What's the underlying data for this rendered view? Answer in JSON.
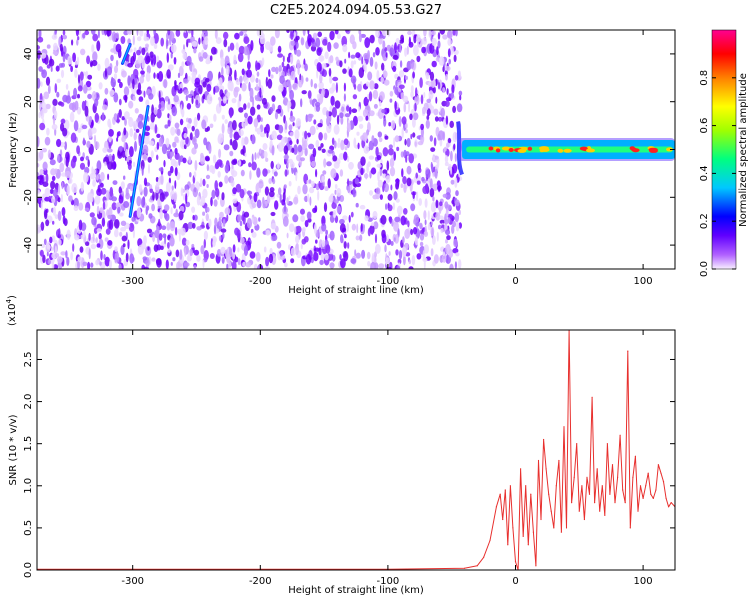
{
  "title": "C2E5.2024.094.05.53.G27",
  "chart_data": [
    {
      "type": "heatmap",
      "xlabel": "Height of straight line (km)",
      "ylabel": "Frequency (Hz)",
      "xlim": [
        -375,
        125
      ],
      "ylim": [
        -50,
        50
      ],
      "xticks": [
        -300,
        -200,
        -100,
        0,
        100
      ],
      "yticks": [
        -40,
        -20,
        0,
        20,
        40
      ],
      "colorbar": {
        "label": "Normalized spectral amplitude",
        "range": [
          0.0,
          1.0
        ],
        "ticks": [
          0.0,
          0.2,
          0.4,
          0.6,
          0.8
        ],
        "colormap": [
          "#f8f0ff",
          "#8000ff",
          "#0000ff",
          "#00c8ff",
          "#00ff80",
          "#a0ff00",
          "#ffff00",
          "#ff8000",
          "#ff0000",
          "#ff00a0"
        ]
      },
      "noise_region_x": [
        -375,
        -43
      ],
      "signal_band": {
        "x": [
          -45,
          125
        ],
        "y": [
          -4,
          4
        ],
        "center_y": 0,
        "peak_amplitude": 0.85
      },
      "streaks": [
        {
          "x": [
            -308,
            -302
          ],
          "y": [
            36,
            44
          ],
          "amplitude": 0.3
        },
        {
          "x": [
            -302,
            -288
          ],
          "y": [
            -28,
            18
          ],
          "amplitude": 0.3
        }
      ]
    },
    {
      "type": "line",
      "xlabel": "Height of straight line (km)",
      "ylabel": "SNR (10 * v/v)",
      "y_multiplier": "(x10",
      "y_multiplier_exp": "4",
      "y_multiplier_close": ")",
      "xlim": [
        -375,
        125
      ],
      "ylim": [
        0,
        2.85
      ],
      "xticks": [
        -300,
        -200,
        -100,
        0,
        100
      ],
      "yticks": [
        0.0,
        0.5,
        1.0,
        1.5,
        2.0,
        2.5
      ],
      "ytick_labels": [
        "0.0",
        "0.5",
        "1.0",
        "1.5",
        "2.0",
        "2.5"
      ],
      "color": "#e8302e",
      "series": [
        {
          "x": [
            -375,
            -300,
            -200,
            -100,
            -40,
            -30,
            -25,
            -20,
            -15,
            -12,
            -10,
            -8,
            -6,
            -4,
            -2,
            0,
            2,
            4,
            6,
            8,
            10,
            12,
            14,
            16,
            18,
            20,
            22,
            24,
            26,
            28,
            30,
            32,
            34,
            36,
            38,
            40,
            42,
            44,
            46,
            48,
            50,
            52,
            54,
            56,
            58,
            60,
            62,
            64,
            66,
            68,
            70,
            72,
            74,
            76,
            78,
            80,
            82,
            84,
            86,
            88,
            90,
            92,
            94,
            96,
            98,
            100,
            102,
            104,
            106,
            108,
            110,
            112,
            114,
            116,
            118,
            120,
            122,
            125
          ],
          "y": [
            0.01,
            0.01,
            0.01,
            0.01,
            0.02,
            0.05,
            0.15,
            0.35,
            0.75,
            0.9,
            0.6,
            0.95,
            0.3,
            1.0,
            0.5,
            0.1,
            0.0,
            1.2,
            0.4,
            1.0,
            0.3,
            0.9,
            0.45,
            0.05,
            1.3,
            0.6,
            1.55,
            1.2,
            0.9,
            0.7,
            0.5,
            1.0,
            1.3,
            0.45,
            1.7,
            0.5,
            2.85,
            0.8,
            1.1,
            1.5,
            0.7,
            1.0,
            0.6,
            1.1,
            0.9,
            2.05,
            0.8,
            1.2,
            0.7,
            1.0,
            0.65,
            1.5,
            0.9,
            1.25,
            0.8,
            1.1,
            1.6,
            0.95,
            0.8,
            2.6,
            0.5,
            1.1,
            1.35,
            0.7,
            1.0,
            0.85,
            1.0,
            1.15,
            0.9,
            0.85,
            0.95,
            1.25,
            1.15,
            1.05,
            0.85,
            0.75,
            0.8,
            0.75
          ]
        }
      ]
    }
  ]
}
